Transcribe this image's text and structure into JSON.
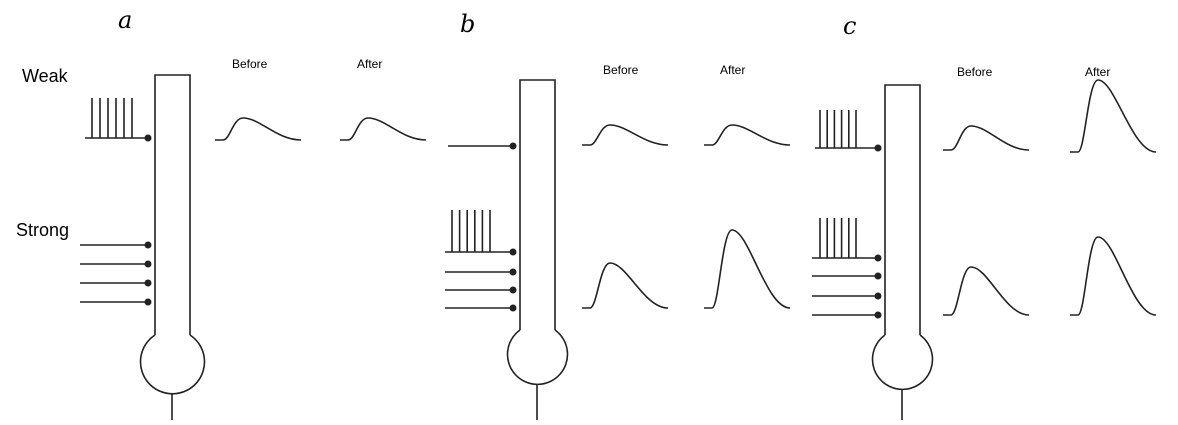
{
  "panels": [
    {
      "label": "a",
      "weak": "Weak",
      "strong": "Strong",
      "before": "Before",
      "after": "After"
    },
    {
      "label": "b",
      "before": "Before",
      "after": "After"
    },
    {
      "label": "c",
      "before": "Before",
      "after": "After"
    }
  ]
}
